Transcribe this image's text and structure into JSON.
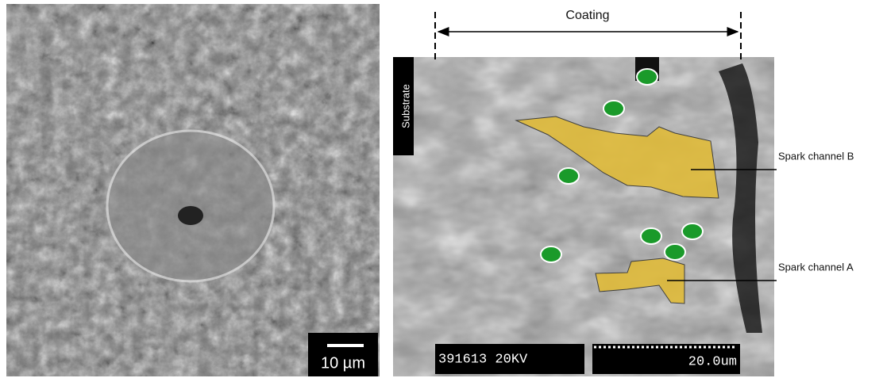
{
  "left_panel": {
    "scale_bar_label": "10 µm"
  },
  "right_panel": {
    "coating_label": "Coating",
    "substrate_label": "Substrate",
    "channel_labels": [
      "Spark channel B",
      "Spark channel A"
    ],
    "footer": [
      "391613 20KV",
      "20.0um"
    ]
  }
}
